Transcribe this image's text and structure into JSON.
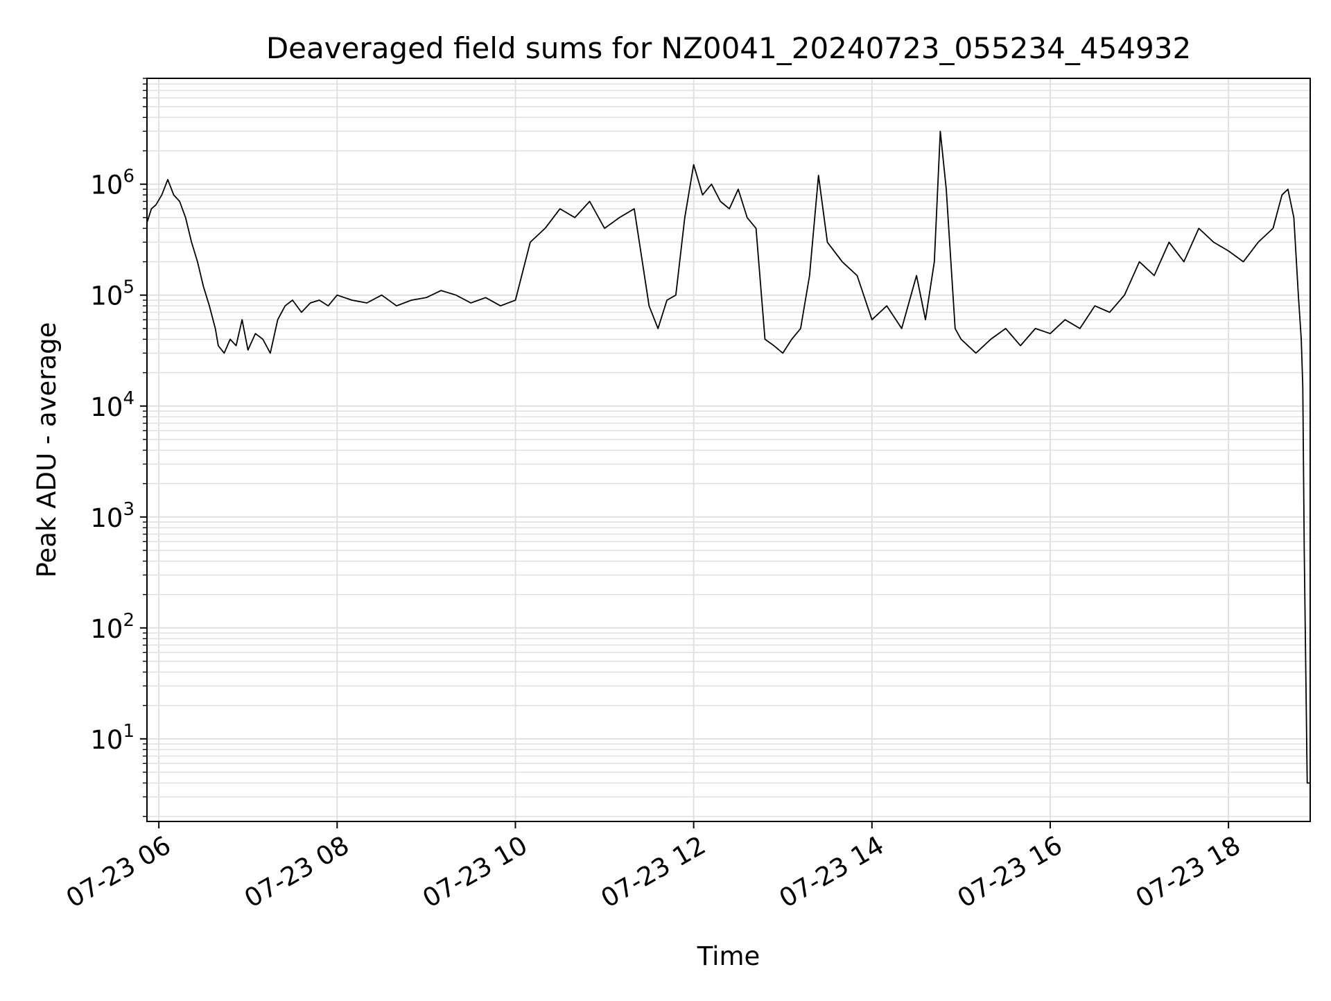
{
  "chart_data": {
    "type": "line",
    "title": "Deaveraged field sums for NZ0041_20240723_055234_454932",
    "xlabel": "Time",
    "ylabel": "Peak ADU - average",
    "y_scale": "log",
    "ylim": [
      1.8,
      9000000
    ],
    "xlim": [
      "2024-07-23T05:52:00",
      "2024-07-23T18:55:00"
    ],
    "grid": true,
    "line_color": "#000000",
    "grid_color": "#e0e0e0",
    "x_ticks": [
      {
        "value": "2024-07-23T06:00:00",
        "label": "07-23 06"
      },
      {
        "value": "2024-07-23T08:00:00",
        "label": "07-23 08"
      },
      {
        "value": "2024-07-23T10:00:00",
        "label": "07-23 10"
      },
      {
        "value": "2024-07-23T12:00:00",
        "label": "07-23 12"
      },
      {
        "value": "2024-07-23T14:00:00",
        "label": "07-23 14"
      },
      {
        "value": "2024-07-23T16:00:00",
        "label": "07-23 16"
      },
      {
        "value": "2024-07-23T18:00:00",
        "label": "07-23 18"
      }
    ],
    "y_ticks": [
      {
        "value": 10,
        "base": "10",
        "exp": "1"
      },
      {
        "value": 100,
        "base": "10",
        "exp": "2"
      },
      {
        "value": 1000,
        "base": "10",
        "exp": "3"
      },
      {
        "value": 10000,
        "base": "10",
        "exp": "4"
      },
      {
        "value": 100000,
        "base": "10",
        "exp": "5"
      },
      {
        "value": 1000000,
        "base": "10",
        "exp": "6"
      }
    ],
    "series": [
      {
        "x": [
          "2024-07-23T05:52:00",
          "2024-07-23T05:55:00",
          "2024-07-23T05:58:00",
          "2024-07-23T06:02:00",
          "2024-07-23T06:06:00",
          "2024-07-23T06:10:00",
          "2024-07-23T06:14:00",
          "2024-07-23T06:18:00",
          "2024-07-23T06:22:00",
          "2024-07-23T06:26:00",
          "2024-07-23T06:30:00",
          "2024-07-23T06:34:00",
          "2024-07-23T06:38:00",
          "2024-07-23T06:40:00",
          "2024-07-23T06:44:00",
          "2024-07-23T06:48:00",
          "2024-07-23T06:52:00",
          "2024-07-23T06:56:00",
          "2024-07-23T07:00:00",
          "2024-07-23T07:05:00",
          "2024-07-23T07:10:00",
          "2024-07-23T07:15:00",
          "2024-07-23T07:20:00",
          "2024-07-23T07:25:00",
          "2024-07-23T07:30:00",
          "2024-07-23T07:36:00",
          "2024-07-23T07:42:00",
          "2024-07-23T07:48:00",
          "2024-07-23T07:54:00",
          "2024-07-23T08:00:00",
          "2024-07-23T08:10:00",
          "2024-07-23T08:20:00",
          "2024-07-23T08:30:00",
          "2024-07-23T08:40:00",
          "2024-07-23T08:50:00",
          "2024-07-23T09:00:00",
          "2024-07-23T09:10:00",
          "2024-07-23T09:20:00",
          "2024-07-23T09:30:00",
          "2024-07-23T09:40:00",
          "2024-07-23T09:50:00",
          "2024-07-23T10:00:00",
          "2024-07-23T10:10:00",
          "2024-07-23T10:20:00",
          "2024-07-23T10:30:00",
          "2024-07-23T10:40:00",
          "2024-07-23T10:50:00",
          "2024-07-23T11:00:00",
          "2024-07-23T11:10:00",
          "2024-07-23T11:20:00",
          "2024-07-23T11:30:00",
          "2024-07-23T11:36:00",
          "2024-07-23T11:42:00",
          "2024-07-23T11:48:00",
          "2024-07-23T11:54:00",
          "2024-07-23T12:00:00",
          "2024-07-23T12:06:00",
          "2024-07-23T12:12:00",
          "2024-07-23T12:18:00",
          "2024-07-23T12:24:00",
          "2024-07-23T12:30:00",
          "2024-07-23T12:36:00",
          "2024-07-23T12:42:00",
          "2024-07-23T12:48:00",
          "2024-07-23T12:54:00",
          "2024-07-23T13:00:00",
          "2024-07-23T13:06:00",
          "2024-07-23T13:12:00",
          "2024-07-23T13:18:00",
          "2024-07-23T13:24:00",
          "2024-07-23T13:30:00",
          "2024-07-23T13:40:00",
          "2024-07-23T13:50:00",
          "2024-07-23T14:00:00",
          "2024-07-23T14:10:00",
          "2024-07-23T14:20:00",
          "2024-07-23T14:30:00",
          "2024-07-23T14:36:00",
          "2024-07-23T14:42:00",
          "2024-07-23T14:46:00",
          "2024-07-23T14:50:00",
          "2024-07-23T14:56:00",
          "2024-07-23T15:00:00",
          "2024-07-23T15:10:00",
          "2024-07-23T15:20:00",
          "2024-07-23T15:30:00",
          "2024-07-23T15:40:00",
          "2024-07-23T15:50:00",
          "2024-07-23T16:00:00",
          "2024-07-23T16:10:00",
          "2024-07-23T16:20:00",
          "2024-07-23T16:30:00",
          "2024-07-23T16:40:00",
          "2024-07-23T16:50:00",
          "2024-07-23T17:00:00",
          "2024-07-23T17:10:00",
          "2024-07-23T17:20:00",
          "2024-07-23T17:30:00",
          "2024-07-23T17:40:00",
          "2024-07-23T17:50:00",
          "2024-07-23T18:00:00",
          "2024-07-23T18:10:00",
          "2024-07-23T18:20:00",
          "2024-07-23T18:30:00",
          "2024-07-23T18:36:00",
          "2024-07-23T18:40:00",
          "2024-07-23T18:44:00",
          "2024-07-23T18:47:00",
          "2024-07-23T18:49:00",
          "2024-07-23T18:50:00",
          "2024-07-23T18:51:00",
          "2024-07-23T18:53:00",
          "2024-07-23T18:55:00"
        ],
        "y": [
          450000,
          600000,
          650000,
          800000,
          1100000,
          800000,
          700000,
          500000,
          300000,
          200000,
          120000,
          80000,
          50000,
          35000,
          30000,
          40000,
          35000,
          60000,
          32000,
          45000,
          40000,
          30000,
          60000,
          80000,
          90000,
          70000,
          85000,
          90000,
          80000,
          100000,
          90000,
          85000,
          100000,
          80000,
          90000,
          95000,
          110000,
          100000,
          85000,
          95000,
          80000,
          90000,
          300000,
          400000,
          600000,
          500000,
          700000,
          400000,
          500000,
          600000,
          80000,
          50000,
          90000,
          100000,
          500000,
          1500000,
          800000,
          1000000,
          700000,
          600000,
          900000,
          500000,
          400000,
          40000,
          35000,
          30000,
          40000,
          50000,
          150000,
          1200000,
          300000,
          200000,
          150000,
          60000,
          80000,
          50000,
          150000,
          60000,
          200000,
          3000000,
          900000,
          50000,
          40000,
          30000,
          40000,
          50000,
          35000,
          50000,
          45000,
          60000,
          50000,
          80000,
          70000,
          100000,
          200000,
          150000,
          300000,
          200000,
          400000,
          300000,
          250000,
          200000,
          300000,
          400000,
          800000,
          900000,
          500000,
          100000,
          40000,
          15000,
          500,
          4,
          4
        ]
      }
    ]
  }
}
